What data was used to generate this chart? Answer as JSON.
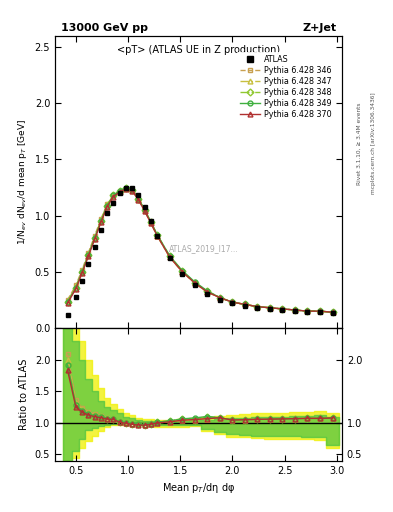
{
  "title_top": "13000 GeV pp",
  "title_right": "Z+Jet",
  "plot_title": "<pT> (ATLAS UE in Z production)",
  "xlabel": "Mean p$_T$/dη dφ",
  "ylabel_main": "1/N$_{ev}$ dN$_{ev}$/d mean p$_T$ [GeV]",
  "ylabel_ratio": "Ratio to ATLAS",
  "right_label": "Rivet 3.1.10, ≥ 3.4M events",
  "right_label2": "mcplots.cern.ch [arXiv:1306.3436]",
  "watermark": "ATLAS_2019_I17...",
  "common_x": [
    0.42,
    0.5,
    0.56,
    0.62,
    0.68,
    0.74,
    0.8,
    0.86,
    0.92,
    0.98,
    1.04,
    1.1,
    1.16,
    1.22,
    1.28,
    1.4,
    1.52,
    1.64,
    1.76,
    1.88,
    2.0,
    2.12,
    2.24,
    2.36,
    2.48,
    2.6,
    2.72,
    2.84,
    2.96
  ],
  "atlas_y": [
    0.12,
    0.28,
    0.42,
    0.57,
    0.72,
    0.87,
    1.02,
    1.11,
    1.2,
    1.25,
    1.25,
    1.18,
    1.08,
    0.95,
    0.82,
    0.62,
    0.48,
    0.38,
    0.3,
    0.25,
    0.22,
    0.2,
    0.18,
    0.17,
    0.16,
    0.15,
    0.14,
    0.14,
    0.13
  ],
  "py346_y": [
    0.25,
    0.38,
    0.52,
    0.67,
    0.82,
    0.97,
    1.1,
    1.18,
    1.22,
    1.24,
    1.22,
    1.14,
    1.04,
    0.93,
    0.82,
    0.63,
    0.5,
    0.4,
    0.32,
    0.27,
    0.23,
    0.21,
    0.19,
    0.18,
    0.17,
    0.16,
    0.15,
    0.15,
    0.14
  ],
  "py347_y": [
    0.24,
    0.37,
    0.51,
    0.66,
    0.81,
    0.96,
    1.1,
    1.18,
    1.22,
    1.25,
    1.23,
    1.15,
    1.05,
    0.94,
    0.82,
    0.63,
    0.5,
    0.4,
    0.32,
    0.27,
    0.23,
    0.21,
    0.19,
    0.18,
    0.17,
    0.16,
    0.15,
    0.15,
    0.14
  ],
  "py348_y": [
    0.23,
    0.36,
    0.5,
    0.65,
    0.8,
    0.95,
    1.09,
    1.18,
    1.22,
    1.25,
    1.23,
    1.15,
    1.05,
    0.94,
    0.83,
    0.64,
    0.51,
    0.4,
    0.33,
    0.27,
    0.23,
    0.21,
    0.19,
    0.18,
    0.17,
    0.16,
    0.15,
    0.15,
    0.14
  ],
  "py349_y": [
    0.23,
    0.36,
    0.5,
    0.65,
    0.8,
    0.95,
    1.09,
    1.18,
    1.22,
    1.25,
    1.23,
    1.15,
    1.05,
    0.94,
    0.83,
    0.64,
    0.51,
    0.41,
    0.33,
    0.27,
    0.23,
    0.21,
    0.19,
    0.18,
    0.17,
    0.16,
    0.15,
    0.15,
    0.14
  ],
  "py370_y": [
    0.22,
    0.35,
    0.49,
    0.64,
    0.79,
    0.94,
    1.08,
    1.17,
    1.21,
    1.24,
    1.22,
    1.14,
    1.04,
    0.93,
    0.82,
    0.63,
    0.5,
    0.4,
    0.32,
    0.27,
    0.23,
    0.21,
    0.19,
    0.18,
    0.17,
    0.16,
    0.15,
    0.15,
    0.14
  ],
  "color_346": "#c8a050",
  "color_347": "#c8c040",
  "color_348": "#90c830",
  "color_349": "#40b040",
  "color_370": "#b03030",
  "band_x": [
    0.42,
    0.5,
    0.56,
    0.62,
    0.68,
    0.74,
    0.8,
    0.86,
    0.92,
    0.98,
    1.04,
    1.1,
    1.16,
    1.22,
    1.28,
    1.4,
    1.52,
    1.64,
    1.76,
    1.88,
    2.0,
    2.12,
    2.24,
    2.36,
    2.48,
    2.6,
    2.72,
    2.84,
    2.96
  ],
  "band_green_lo": [
    0.4,
    0.55,
    0.75,
    0.88,
    0.92,
    0.95,
    0.97,
    0.98,
    0.99,
    0.99,
    0.99,
    0.98,
    0.97,
    0.96,
    0.96,
    0.96,
    0.96,
    0.97,
    0.9,
    0.85,
    0.82,
    0.81,
    0.8,
    0.79,
    0.79,
    0.79,
    0.78,
    0.77,
    0.65
  ],
  "band_green_hi": [
    2.5,
    2.3,
    2.0,
    1.7,
    1.5,
    1.35,
    1.25,
    1.2,
    1.15,
    1.1,
    1.08,
    1.05,
    1.03,
    1.03,
    1.02,
    1.02,
    1.03,
    1.04,
    1.05,
    1.06,
    1.07,
    1.08,
    1.1,
    1.1,
    1.1,
    1.11,
    1.11,
    1.12,
    1.1
  ],
  "band_yellow_lo": [
    0.35,
    0.45,
    0.6,
    0.72,
    0.8,
    0.87,
    0.93,
    0.96,
    0.97,
    0.98,
    0.98,
    0.97,
    0.96,
    0.95,
    0.94,
    0.94,
    0.94,
    0.95,
    0.87,
    0.82,
    0.78,
    0.77,
    0.76,
    0.75,
    0.75,
    0.75,
    0.74,
    0.73,
    0.6
  ],
  "band_yellow_hi": [
    2.8,
    2.6,
    2.3,
    2.0,
    1.75,
    1.55,
    1.4,
    1.3,
    1.22,
    1.15,
    1.12,
    1.08,
    1.06,
    1.06,
    1.05,
    1.05,
    1.06,
    1.07,
    1.09,
    1.11,
    1.13,
    1.14,
    1.16,
    1.16,
    1.16,
    1.17,
    1.17,
    1.18,
    1.15
  ]
}
